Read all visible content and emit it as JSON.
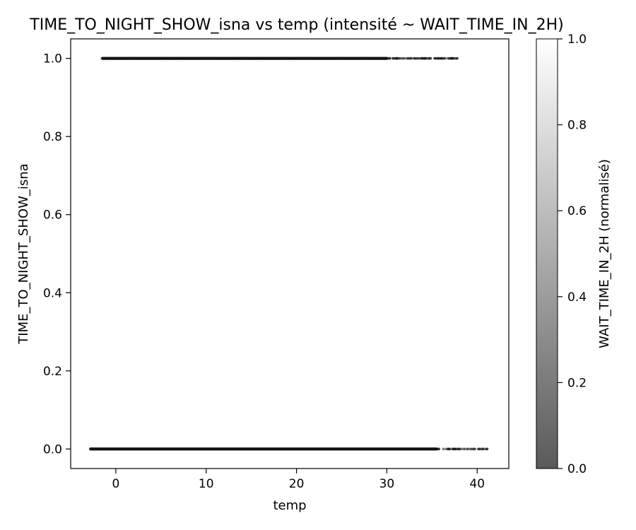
{
  "chart_data": {
    "type": "scatter",
    "title": "TIME_TO_NIGHT_SHOW_isna vs temp (intensité ~ WAIT_TIME_IN_2H)",
    "xlabel": "temp",
    "ylabel": "TIME_TO_NIGHT_SHOW_isna",
    "xlim": [
      -5,
      43.5
    ],
    "ylim": [
      -0.05,
      1.05
    ],
    "grid": false,
    "x_ticks": [
      0,
      10,
      20,
      30,
      40
    ],
    "x_tick_labels": [
      "0",
      "10",
      "20",
      "30",
      "40"
    ],
    "y_ticks": [
      0.0,
      0.2,
      0.4,
      0.6,
      0.8,
      1.0
    ],
    "y_tick_labels": [
      "0.0",
      "0.2",
      "0.4",
      "0.6",
      "0.8",
      "1.0"
    ],
    "series": [
      {
        "name": "TIME_TO_NIGHT_SHOW_isna = 1",
        "y": 1.0,
        "x_range": [
          -1.5,
          38.0
        ],
        "dense_range": [
          -1.3,
          30.0
        ],
        "intensity": 0.08
      },
      {
        "name": "TIME_TO_NIGHT_SHOW_isna = 0",
        "y": 0.0,
        "x_range": [
          -2.8,
          41.3
        ],
        "dense_range": [
          -2.0,
          35.5
        ],
        "intensity": 0.08
      }
    ],
    "outliers": [
      {
        "x": -2.8,
        "y": 0.0
      }
    ],
    "colorbar": {
      "label": "WAIT_TIME_IN_2H (normalisé)",
      "range": [
        0.0,
        1.0
      ],
      "ticks": [
        0.0,
        0.2,
        0.4,
        0.6,
        0.8,
        1.0
      ],
      "tick_labels": [
        "0.0",
        "0.2",
        "0.4",
        "0.6",
        "0.8",
        "1.0"
      ],
      "color_low": "#5a5a5a",
      "color_high": "#ffffff"
    },
    "colors": {
      "marker": "#111111",
      "axes": "#000000",
      "background": "#ffffff"
    }
  }
}
